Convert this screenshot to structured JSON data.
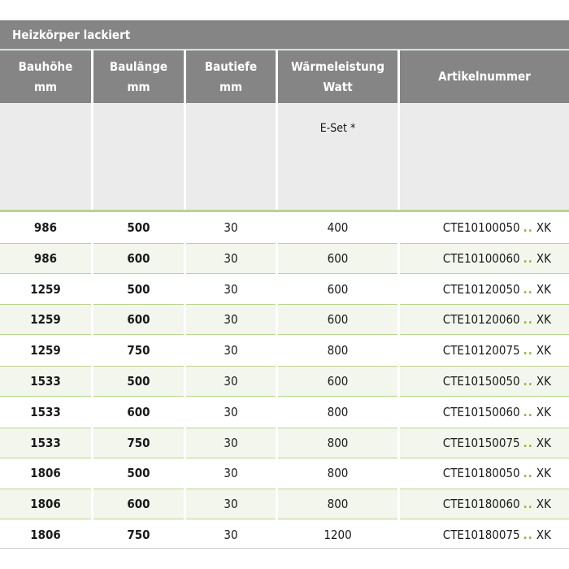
{
  "title": "Heizkörper lackiert",
  "columns": [
    {
      "line1": "Bauhöhe",
      "line2": "mm"
    },
    {
      "line1": "Baulänge",
      "line2": "mm"
    },
    {
      "line1": "Bautiefe",
      "line2": "mm"
    },
    {
      "line1": "Wärmeleistung",
      "line2": "Watt"
    },
    {
      "line1": "Artikelnummer",
      "line2": ""
    }
  ],
  "subheader": {
    "waerme": "E-Set *"
  },
  "dots": "..",
  "colors": {
    "header": "#858585",
    "accent": "#8dbb3f",
    "alt_row": "#f3f6ec"
  },
  "rows": [
    {
      "h": "986",
      "l": "500",
      "t": "30",
      "w": "400",
      "art": "CTE10100050",
      "suf": "XK"
    },
    {
      "h": "986",
      "l": "600",
      "t": "30",
      "w": "600",
      "art": "CTE10100060",
      "suf": "XK"
    },
    {
      "h": "1259",
      "l": "500",
      "t": "30",
      "w": "600",
      "art": "CTE10120050",
      "suf": "XK"
    },
    {
      "h": "1259",
      "l": "600",
      "t": "30",
      "w": "600",
      "art": "CTE10120060",
      "suf": "XK"
    },
    {
      "h": "1259",
      "l": "750",
      "t": "30",
      "w": "800",
      "art": "CTE10120075",
      "suf": "XK"
    },
    {
      "h": "1533",
      "l": "500",
      "t": "30",
      "w": "600",
      "art": "CTE10150050",
      "suf": "XK"
    },
    {
      "h": "1533",
      "l": "600",
      "t": "30",
      "w": "800",
      "art": "CTE10150060",
      "suf": "XK"
    },
    {
      "h": "1533",
      "l": "750",
      "t": "30",
      "w": "800",
      "art": "CTE10150075",
      "suf": "XK"
    },
    {
      "h": "1806",
      "l": "500",
      "t": "30",
      "w": "800",
      "art": "CTE10180050",
      "suf": "XK"
    },
    {
      "h": "1806",
      "l": "600",
      "t": "30",
      "w": "800",
      "art": "CTE10180060",
      "suf": "XK"
    },
    {
      "h": "1806",
      "l": "750",
      "t": "30",
      "w": "1200",
      "art": "CTE10180075",
      "suf": "XK"
    }
  ]
}
